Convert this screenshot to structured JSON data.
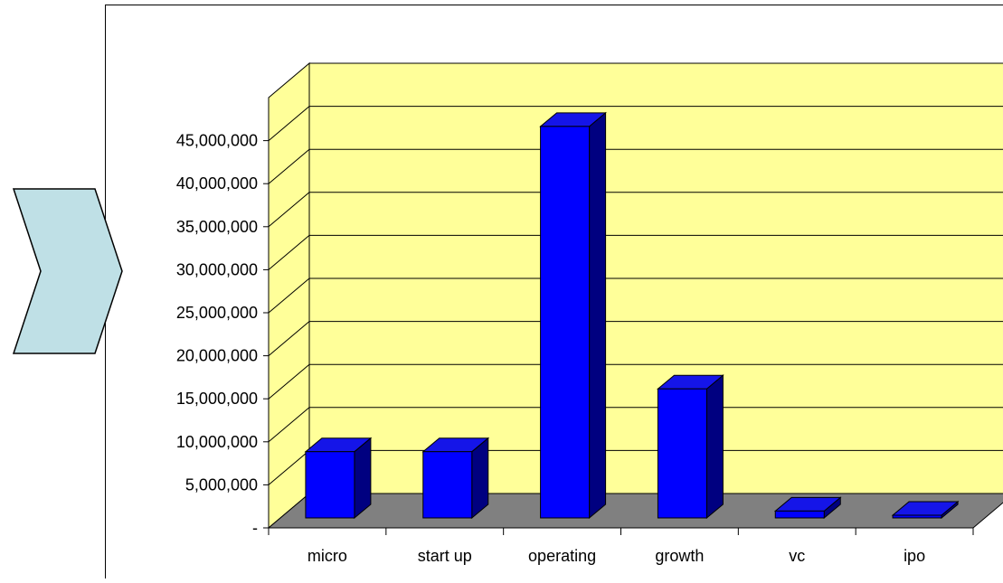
{
  "colors": {
    "back_wall": "#ffff99",
    "side_wall": "#ffff99",
    "floor": "#808080",
    "bar_front": "#0000ff",
    "bar_top": "#1515e8",
    "bar_side": "#000080",
    "chevron_fill": "#bfe0e6"
  },
  "icons": {
    "decor": "chevron-right-icon"
  },
  "chart_data": {
    "type": "bar",
    "style": "3d",
    "categories": [
      "micro",
      "start up",
      "operating",
      "growth",
      "vc",
      "ipo"
    ],
    "series": [
      {
        "values": [
          7700000,
          7700000,
          45500000,
          15000000,
          800000,
          0
        ]
      }
    ],
    "y_tick_labels": [
      "-",
      "5,000,000",
      "10,000,000",
      "15,000,000",
      "20,000,000",
      "25,000,000",
      "30,000,000",
      "35,000,000",
      "40,000,000",
      "45,000,000"
    ],
    "ylim": [
      0,
      50000000
    ],
    "ytick_step": 5000000,
    "grid": true,
    "legend": "none",
    "title": "",
    "xlabel": "",
    "ylabel": ""
  }
}
